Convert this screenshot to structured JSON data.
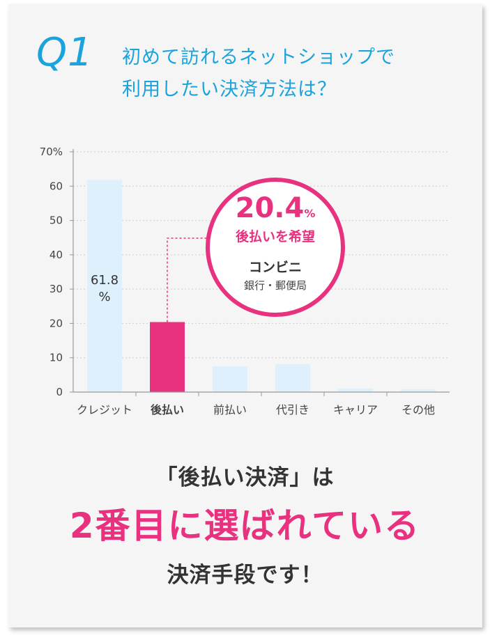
{
  "question": {
    "mark": "Q1",
    "line1": "初めて訪れるネットショップで",
    "line2": "利用したい決済方法は？"
  },
  "chart_data": {
    "type": "bar",
    "categories": [
      "クレジット",
      "後払い",
      "前払い",
      "代引き",
      "キャリア",
      "その他"
    ],
    "values": [
      61.8,
      20.4,
      7.5,
      8.1,
      1.0,
      0.8
    ],
    "highlight_index": 1,
    "ylim": [
      0,
      70
    ],
    "yticks": [
      "0",
      "10",
      "20",
      "30",
      "40",
      "50",
      "60",
      "70%"
    ],
    "grid": true,
    "data_labels": [
      {
        "index": 0,
        "value": "61.8",
        "unit": "%"
      }
    ],
    "colors": {
      "bar": "#ddf0fb",
      "highlight": "#e8317f",
      "axis": "#999999",
      "grid": "#cccccc"
    },
    "callout": {
      "value": "20.4",
      "unit": "%",
      "label": "後払いを希望",
      "line1": "コンビニ",
      "line2": "銀行・郵便局"
    }
  },
  "summary": {
    "line1": "「後払い決済」は",
    "line2": "2番目に選ばれている",
    "line3": "決済手段です！"
  }
}
